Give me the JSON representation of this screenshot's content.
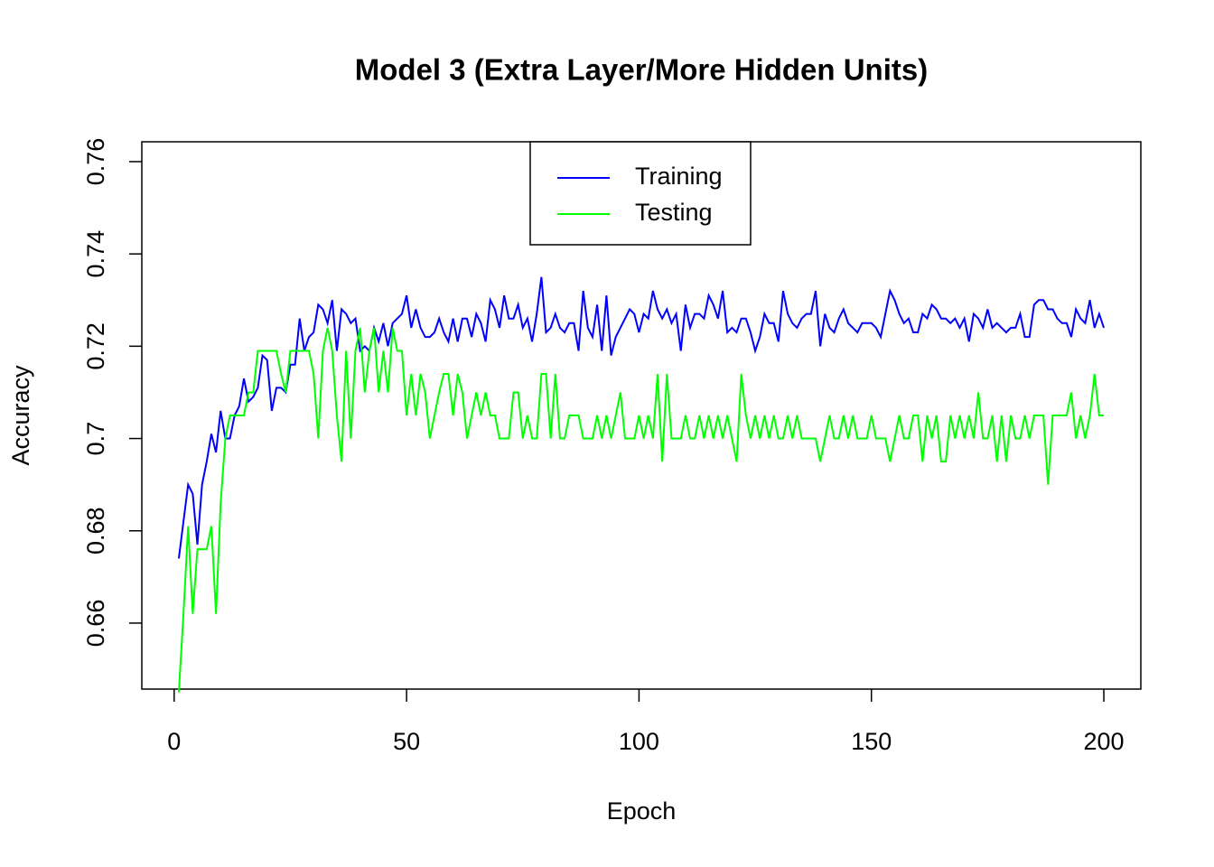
{
  "chart_data": {
    "type": "line",
    "title": "Model 3 (Extra Layer/More Hidden Units)",
    "x_label": "Epoch",
    "y_label": "Accuracy",
    "x": [
      1,
      2,
      3,
      4,
      5,
      6,
      7,
      8,
      9,
      10,
      11,
      12,
      13,
      14,
      15,
      16,
      17,
      18,
      19,
      20,
      21,
      22,
      23,
      24,
      25,
      26,
      27,
      28,
      29,
      30,
      31,
      32,
      33,
      34,
      35,
      36,
      37,
      38,
      39,
      40,
      41,
      42,
      43,
      44,
      45,
      46,
      47,
      48,
      49,
      50,
      51,
      52,
      53,
      54,
      55,
      56,
      57,
      58,
      59,
      60,
      61,
      62,
      63,
      64,
      65,
      66,
      67,
      68,
      69,
      70,
      71,
      72,
      73,
      74,
      75,
      76,
      77,
      78,
      79,
      80,
      81,
      82,
      83,
      84,
      85,
      86,
      87,
      88,
      89,
      90,
      91,
      92,
      93,
      94,
      95,
      96,
      97,
      98,
      99,
      100,
      101,
      102,
      103,
      104,
      105,
      106,
      107,
      108,
      109,
      110,
      111,
      112,
      113,
      114,
      115,
      116,
      117,
      118,
      119,
      120,
      121,
      122,
      123,
      124,
      125,
      126,
      127,
      128,
      129,
      130,
      131,
      132,
      133,
      134,
      135,
      136,
      137,
      138,
      139,
      140,
      141,
      142,
      143,
      144,
      145,
      146,
      147,
      148,
      149,
      150,
      151,
      152,
      153,
      154,
      155,
      156,
      157,
      158,
      159,
      160,
      161,
      162,
      163,
      164,
      165,
      166,
      167,
      168,
      169,
      170,
      171,
      172,
      173,
      174,
      175,
      176,
      177,
      178,
      179,
      180,
      181,
      182,
      183,
      184,
      185,
      186,
      187,
      188,
      189,
      190,
      191,
      192,
      193,
      194,
      195,
      196,
      197,
      198,
      199,
      200
    ],
    "series": [
      {
        "name": "Training",
        "color": "#0000ff",
        "values": [
          0.674,
          0.682,
          0.69,
          0.688,
          0.677,
          0.69,
          0.695,
          0.701,
          0.697,
          0.706,
          0.7,
          0.7,
          0.705,
          0.707,
          0.713,
          0.708,
          0.709,
          0.711,
          0.718,
          0.717,
          0.706,
          0.711,
          0.711,
          0.71,
          0.716,
          0.716,
          0.726,
          0.719,
          0.722,
          0.723,
          0.729,
          0.728,
          0.725,
          0.73,
          0.719,
          0.728,
          0.727,
          0.725,
          0.726,
          0.719,
          0.72,
          0.719,
          0.724,
          0.721,
          0.725,
          0.72,
          0.725,
          0.726,
          0.727,
          0.731,
          0.724,
          0.728,
          0.724,
          0.722,
          0.722,
          0.723,
          0.726,
          0.723,
          0.721,
          0.726,
          0.721,
          0.726,
          0.726,
          0.722,
          0.727,
          0.725,
          0.721,
          0.73,
          0.728,
          0.724,
          0.731,
          0.726,
          0.726,
          0.729,
          0.724,
          0.726,
          0.721,
          0.727,
          0.735,
          0.723,
          0.724,
          0.727,
          0.724,
          0.723,
          0.725,
          0.725,
          0.719,
          0.732,
          0.724,
          0.722,
          0.729,
          0.719,
          0.731,
          0.718,
          0.722,
          0.724,
          0.726,
          0.728,
          0.727,
          0.723,
          0.727,
          0.726,
          0.732,
          0.728,
          0.726,
          0.728,
          0.725,
          0.727,
          0.719,
          0.729,
          0.724,
          0.727,
          0.727,
          0.726,
          0.731,
          0.729,
          0.726,
          0.732,
          0.723,
          0.724,
          0.723,
          0.726,
          0.726,
          0.723,
          0.719,
          0.722,
          0.727,
          0.725,
          0.725,
          0.721,
          0.732,
          0.727,
          0.725,
          0.724,
          0.726,
          0.727,
          0.727,
          0.732,
          0.72,
          0.727,
          0.724,
          0.723,
          0.726,
          0.728,
          0.725,
          0.724,
          0.723,
          0.725,
          0.725,
          0.725,
          0.724,
          0.722,
          0.727,
          0.732,
          0.73,
          0.727,
          0.725,
          0.726,
          0.723,
          0.723,
          0.727,
          0.726,
          0.729,
          0.728,
          0.726,
          0.726,
          0.725,
          0.726,
          0.724,
          0.726,
          0.721,
          0.727,
          0.726,
          0.724,
          0.728,
          0.724,
          0.725,
          0.724,
          0.723,
          0.724,
          0.724,
          0.727,
          0.722,
          0.722,
          0.729,
          0.73,
          0.73,
          0.728,
          0.728,
          0.726,
          0.725,
          0.725,
          0.722,
          0.728,
          0.726,
          0.725,
          0.73,
          0.724,
          0.727,
          0.724
        ]
      },
      {
        "name": "Testing",
        "color": "#00ff00",
        "values": [
          0.645,
          0.662,
          0.681,
          0.662,
          0.676,
          0.676,
          0.676,
          0.681,
          0.662,
          0.686,
          0.7,
          0.705,
          0.705,
          0.705,
          0.705,
          0.71,
          0.71,
          0.719,
          0.719,
          0.719,
          0.719,
          0.719,
          0.714,
          0.71,
          0.719,
          0.719,
          0.719,
          0.719,
          0.719,
          0.714,
          0.7,
          0.719,
          0.724,
          0.719,
          0.705,
          0.695,
          0.719,
          0.7,
          0.719,
          0.724,
          0.71,
          0.719,
          0.724,
          0.71,
          0.719,
          0.71,
          0.724,
          0.719,
          0.719,
          0.705,
          0.714,
          0.705,
          0.714,
          0.71,
          0.7,
          0.705,
          0.71,
          0.714,
          0.714,
          0.705,
          0.714,
          0.71,
          0.7,
          0.705,
          0.71,
          0.705,
          0.71,
          0.705,
          0.705,
          0.7,
          0.7,
          0.7,
          0.71,
          0.71,
          0.7,
          0.705,
          0.7,
          0.7,
          0.714,
          0.714,
          0.7,
          0.714,
          0.7,
          0.7,
          0.705,
          0.705,
          0.705,
          0.7,
          0.7,
          0.7,
          0.705,
          0.7,
          0.705,
          0.7,
          0.705,
          0.71,
          0.7,
          0.7,
          0.7,
          0.705,
          0.7,
          0.705,
          0.7,
          0.714,
          0.695,
          0.714,
          0.7,
          0.7,
          0.7,
          0.705,
          0.7,
          0.7,
          0.705,
          0.7,
          0.705,
          0.7,
          0.705,
          0.7,
          0.705,
          0.7,
          0.695,
          0.714,
          0.705,
          0.7,
          0.705,
          0.7,
          0.705,
          0.7,
          0.705,
          0.7,
          0.7,
          0.705,
          0.7,
          0.705,
          0.7,
          0.7,
          0.7,
          0.7,
          0.695,
          0.7,
          0.705,
          0.7,
          0.7,
          0.705,
          0.7,
          0.705,
          0.7,
          0.7,
          0.7,
          0.705,
          0.7,
          0.7,
          0.7,
          0.695,
          0.7,
          0.705,
          0.7,
          0.7,
          0.705,
          0.705,
          0.695,
          0.705,
          0.7,
          0.705,
          0.695,
          0.695,
          0.705,
          0.7,
          0.705,
          0.7,
          0.705,
          0.7,
          0.71,
          0.7,
          0.7,
          0.705,
          0.695,
          0.705,
          0.695,
          0.705,
          0.7,
          0.7,
          0.705,
          0.7,
          0.705,
          0.705,
          0.705,
          0.69,
          0.705,
          0.705,
          0.705,
          0.705,
          0.71,
          0.7,
          0.705,
          0.7,
          0.705,
          0.714,
          0.705,
          0.705
        ]
      }
    ],
    "xlim": [
      -6.96,
      207.96
    ],
    "ylim": [
      0.6457,
      0.7643
    ],
    "xticks": [
      0,
      50,
      100,
      150,
      200
    ],
    "yticks": [
      0.66,
      0.68,
      0.7,
      0.72,
      0.74,
      0.76
    ],
    "legend": "top",
    "grid": false
  }
}
